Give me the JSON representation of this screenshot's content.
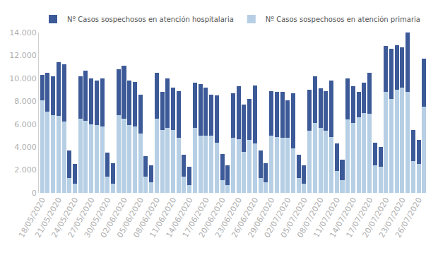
{
  "chart_data": {
    "type": "bar",
    "stacked": true,
    "legend": "top-left",
    "grid": false,
    "categories": [
      "18/05/2020",
      null,
      null,
      "21/05/2020",
      null,
      null,
      "24/05/2020",
      null,
      null,
      "27/05/2020",
      null,
      null,
      "30/05/2020",
      null,
      null,
      "02/06/2020",
      null,
      null,
      "05/06/2020",
      null,
      null,
      "08/06/2020",
      null,
      null,
      "11/06/2020",
      null,
      null,
      "14/06/2020",
      null,
      null,
      "17/06/2020",
      null,
      null,
      "20/06/2020",
      null,
      null,
      "23/06/2020",
      null,
      null,
      "26/06/2020",
      null,
      null,
      "29/06/2020",
      null,
      null,
      "02/07/2020",
      null,
      null,
      "05/07/2020",
      null,
      null,
      "08/07/2020",
      null,
      null,
      "11/07/2020",
      null,
      null,
      "14/07/2020",
      null,
      null,
      "17/07/2020",
      null,
      null,
      "20/07/2020",
      null,
      null,
      "23/07/2020",
      null,
      null,
      "26/07/2020",
      null
    ],
    "series": [
      {
        "name": "Nº Casos sospechosos en atención primaria",
        "color": "#b6cfe4",
        "values": [
          8100,
          7100,
          6800,
          6700,
          6200,
          1300,
          800,
          6500,
          6300,
          6000,
          5900,
          5800,
          1400,
          800,
          6800,
          6500,
          5900,
          5800,
          5200,
          1400,
          900,
          6500,
          5500,
          5700,
          5500,
          4800,
          1400,
          700,
          5700,
          5000,
          5000,
          5000,
          4400,
          1100,
          700,
          4800,
          4700,
          3600,
          4600,
          4300,
          1300,
          900,
          5000,
          4900,
          4800,
          4800,
          3900,
          1300,
          800,
          5400,
          6100,
          5700,
          5400,
          4900,
          1900,
          1100,
          6400,
          6100,
          6600,
          7000,
          6900,
          2400,
          2300,
          8800,
          8200,
          9000,
          9200,
          8800,
          2800,
          2500,
          7500
        ]
      },
      {
        "name": "Nº Casos sospechosos en atención hospitalaria",
        "color": "#3d5a98",
        "values": [
          2200,
          3400,
          3400,
          4700,
          5000,
          2400,
          1700,
          3700,
          4400,
          4000,
          3900,
          4200,
          2100,
          1800,
          4000,
          4600,
          3900,
          3900,
          3400,
          1800,
          1500,
          4000,
          3300,
          4300,
          3700,
          4100,
          1900,
          1600,
          3900,
          4500,
          4200,
          3600,
          4100,
          2300,
          1700,
          3900,
          4600,
          4100,
          3600,
          5100,
          2400,
          1700,
          3900,
          3900,
          4000,
          3300,
          4800,
          2000,
          1600,
          3600,
          4100,
          3400,
          3500,
          4900,
          2400,
          1800,
          3600,
          3200,
          2200,
          2600,
          3600,
          2000,
          1700,
          4000,
          4400,
          3900,
          3500,
          5200,
          2700,
          2100,
          4200
        ]
      }
    ],
    "ylim": [
      0,
      14000
    ],
    "yticks": [
      0,
      {
        "value": 2000,
        "label": "2.000"
      },
      {
        "value": 4000,
        "label": "4.000"
      },
      {
        "value": 6000,
        "label": "6.000"
      },
      {
        "value": 8000,
        "label": "8.000"
      },
      {
        "value": 10000,
        "label": "10.000"
      },
      {
        "value": 12000,
        "label": "12.000"
      },
      {
        "value": 14000,
        "label": "14.000"
      }
    ]
  }
}
